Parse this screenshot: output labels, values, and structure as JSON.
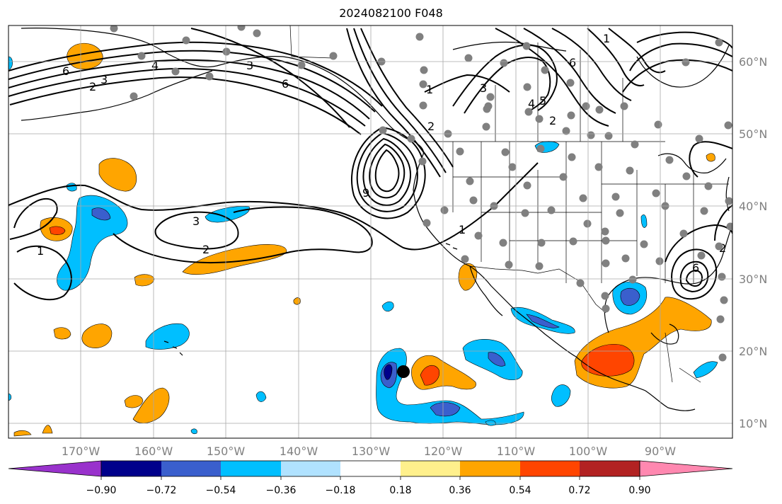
{
  "title": "2024082100 F048",
  "longitude_labels": [
    "170°W",
    "160°W",
    "150°W",
    "140°W",
    "130°W",
    "120°W",
    "110°W",
    "100°W",
    "90°W"
  ],
  "latitude_labels": [
    "60°N",
    "50°N",
    "40°N",
    "30°N",
    "20°N",
    "10°N"
  ],
  "colorbar": {
    "tick_labels": [
      "−0.90",
      "−0.72",
      "−0.54",
      "−0.36",
      "−0.18",
      "0.18",
      "0.36",
      "0.54",
      "0.72",
      "0.90"
    ],
    "colors": [
      "#9932cc",
      "#00008b",
      "#3a5fcd",
      "#00bfff",
      "#b0e2ff",
      "#ffffff",
      "#fff08c",
      "#ffa500",
      "#ff4500",
      "#b22222",
      "#ff88b0"
    ]
  },
  "contour_labels": [
    "6",
    "3",
    "2",
    "4",
    "3",
    "6",
    "1",
    "3",
    "2",
    "4",
    "5",
    "6",
    "2",
    "9",
    "3",
    "2",
    "1",
    "1",
    "6",
    "2",
    "1"
  ],
  "colors": {
    "anomaly_negative": "#00bfff",
    "anomaly_strong_negative": "#3a5fcd",
    "anomaly_very_strong_negative": "#00008b",
    "anomaly_positive": "#ffa500",
    "anomaly_strong_positive": "#ff4500",
    "station_marker": "#808080",
    "storm_marker": "#000000",
    "contour": "#000000",
    "grid": "#a9a9a9"
  }
}
